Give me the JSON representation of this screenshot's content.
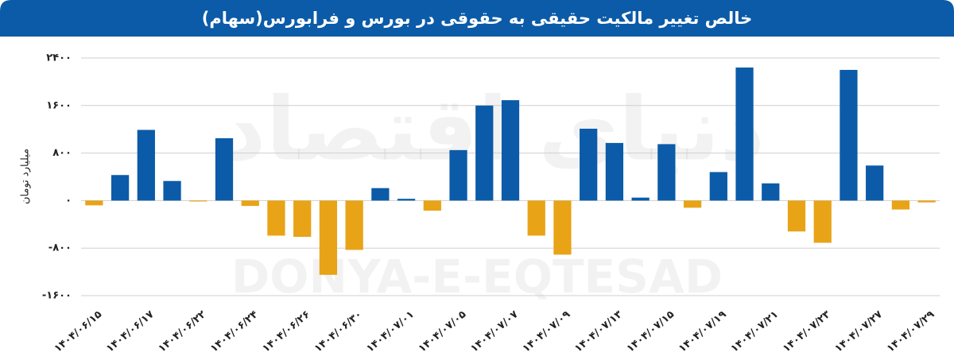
{
  "chart_data": {
    "type": "bar",
    "title": "خالص تغییر مالکیت حقیقی به حقوقی در بورس و فرابورس(سهام)",
    "y_label": "میلیارد تومان",
    "watermark": "DONYA-E-EQTESAD",
    "watermark_fa": "دنیای اقتصاد",
    "categories": [
      "۱۴۰۴/۰۶/۱۵",
      null,
      "۱۴۰۴/۰۶/۱۷",
      null,
      "۱۴۰۴/۰۶/۲۲",
      null,
      "۱۴۰۴/۰۶/۲۴",
      null,
      "۱۴۰۴/۰۶/۲۶",
      null,
      "۱۴۰۴/۰۶/۳۰",
      null,
      "۱۴۰۴/۰۷/۰۱",
      null,
      "۱۴۰۴/۰۷/۰۵",
      null,
      "۱۴۰۴/۰۷/۰۷",
      null,
      "۱۴۰۴/۰۷/۰۹",
      null,
      "۱۴۰۴/۰۷/۱۳",
      null,
      "۱۴۰۴/۰۷/۱۵",
      null,
      "۱۴۰۴/۰۷/۱۹",
      null,
      "۱۴۰۴/۰۷/۲۱",
      null,
      "۱۴۰۴/۰۷/۲۳",
      null,
      "۱۴۰۴/۰۷/۲۷",
      null,
      "۱۴۰۴/۰۷/۲۹"
    ],
    "values": [
      -80,
      430,
      1190,
      330,
      -15,
      1050,
      -90,
      -590,
      -610,
      -1250,
      -830,
      210,
      30,
      -170,
      850,
      1600,
      1690,
      -590,
      -910,
      1210,
      970,
      50,
      950,
      -120,
      480,
      2240,
      290,
      -520,
      -710,
      2200,
      590,
      -150,
      -30
    ],
    "positive_color": "#0b5ba8",
    "negative_color": "#e8a317",
    "ylim": [
      -1600,
      2400
    ],
    "yticks": [
      {
        "value": -1600,
        "label": "-۱۶۰۰"
      },
      {
        "value": -800,
        "label": "-۸۰۰"
      },
      {
        "value": 0,
        "label": "۰"
      },
      {
        "value": 800,
        "label": "۸۰۰"
      },
      {
        "value": 1600,
        "label": "۱۶۰۰"
      },
      {
        "value": 2400,
        "label": "۲۴۰۰"
      }
    ],
    "grid": true
  }
}
